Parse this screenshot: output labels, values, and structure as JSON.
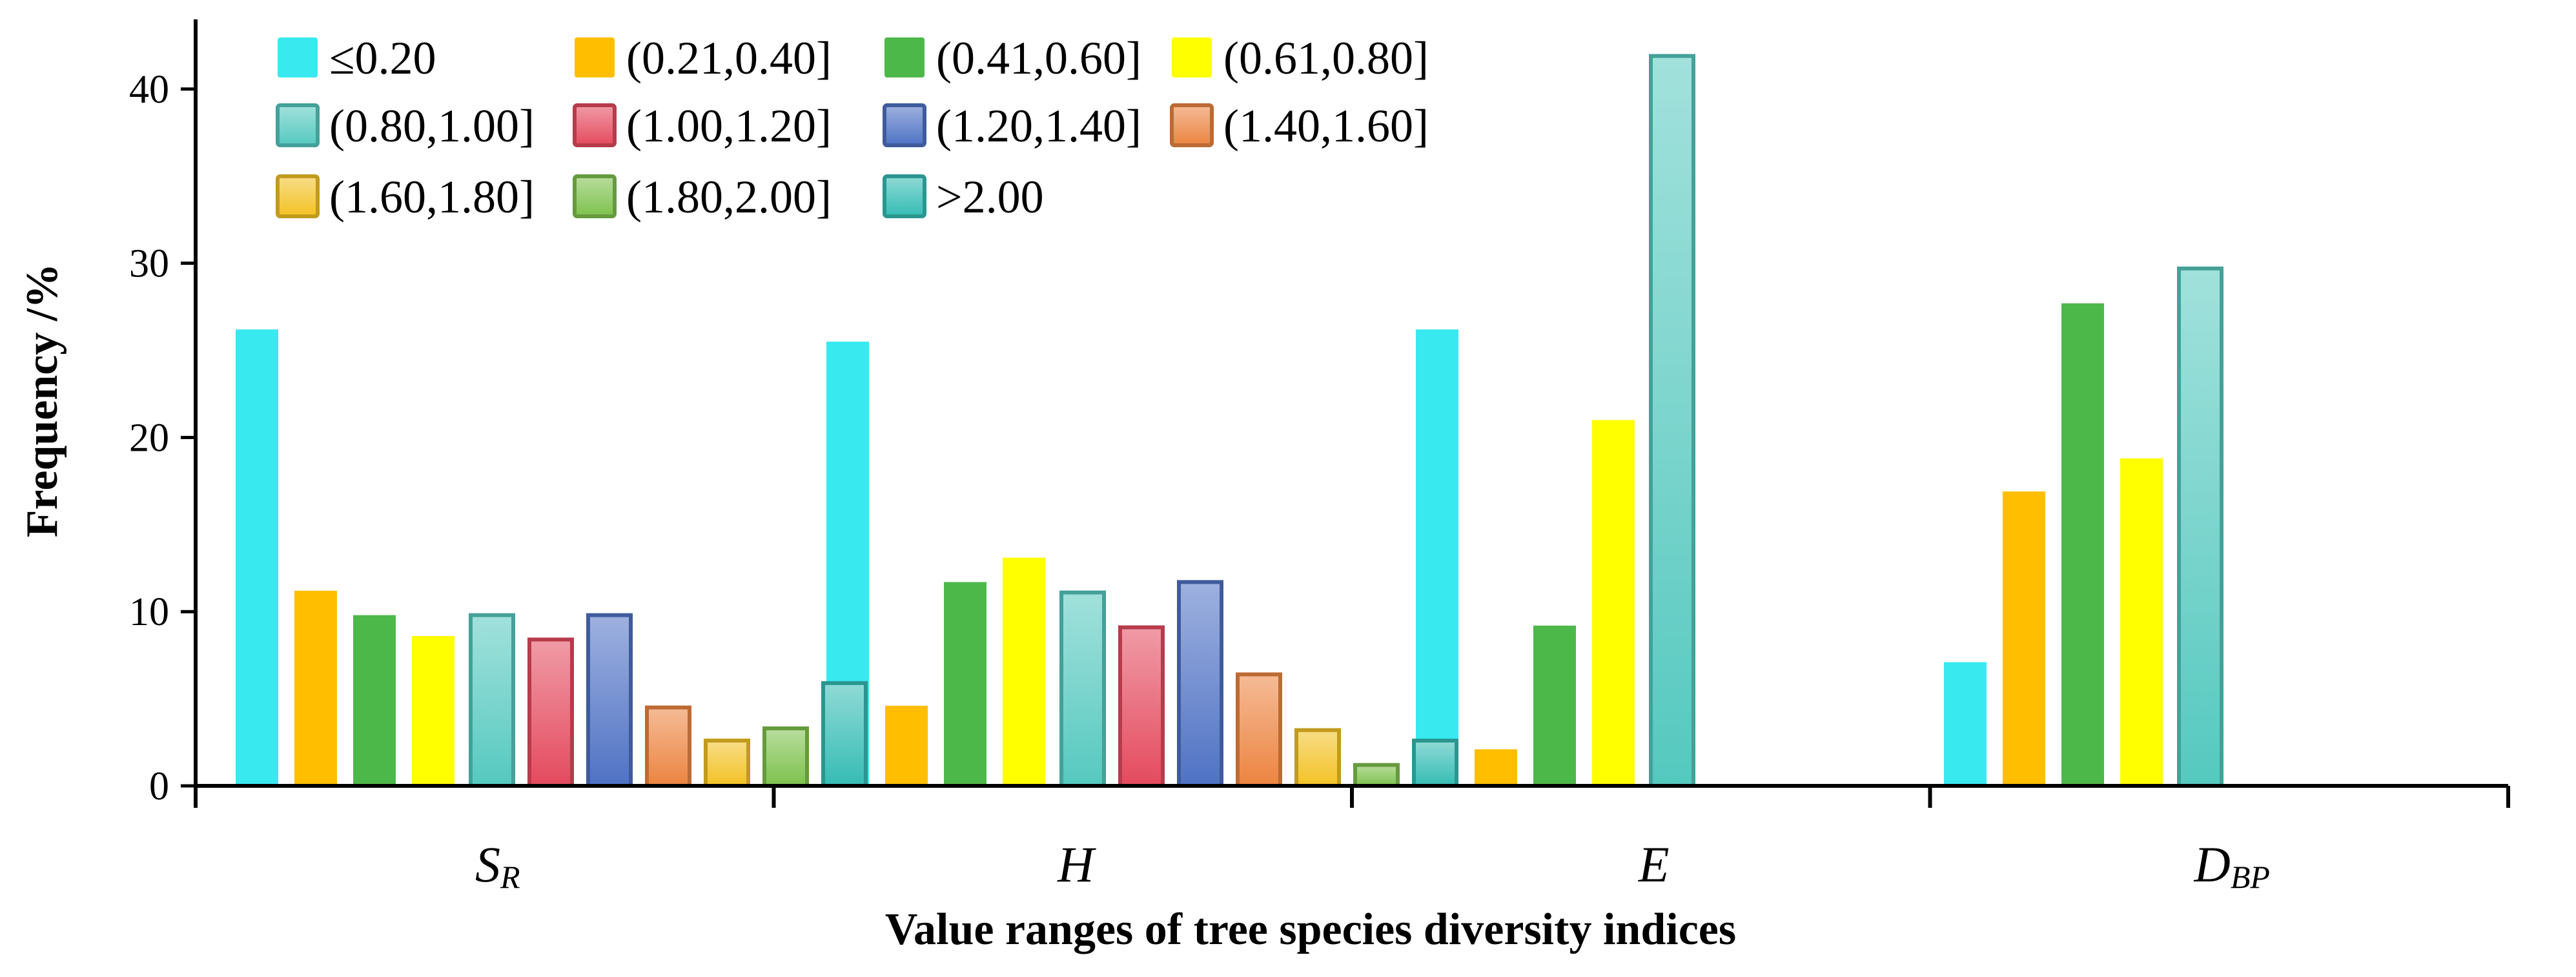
{
  "chart_data": {
    "type": "bar",
    "title": "",
    "xlabel": "Value ranges of tree species diversity indices",
    "ylabel": "Frequency /%",
    "ylim": [
      0,
      44
    ],
    "yticks": [
      "0",
      "10",
      "20",
      "30",
      "40"
    ],
    "categories": [
      {
        "main": "S",
        "sub": "R"
      },
      {
        "main": "H",
        "sub": ""
      },
      {
        "main": "E",
        "sub": ""
      },
      {
        "main": "D",
        "sub": "BP"
      }
    ],
    "series": [
      {
        "name": "≤0.20",
        "color": "#38e9f0",
        "values": [
          26.2,
          25.5,
          26.2,
          7.1
        ]
      },
      {
        "name": "(0.21,0.40]",
        "color": "#ffbe00",
        "values": [
          11.2,
          4.6,
          2.1,
          16.9
        ]
      },
      {
        "name": "(0.41,0.60]",
        "color": "#4db84a",
        "values": [
          9.8,
          11.7,
          9.2,
          27.7
        ]
      },
      {
        "name": "(0.61,0.80]",
        "color": "#ffff00",
        "values": [
          8.6,
          13.1,
          21.0,
          18.8
        ]
      },
      {
        "name": "(0.80,1.00]",
        "color": "#55c9bf",
        "values": [
          9.8,
          11.1,
          41.9,
          29.7
        ]
      },
      {
        "name": "(1.00,1.20]",
        "color": "#e44a5e",
        "values": [
          8.4,
          9.1,
          null,
          null
        ]
      },
      {
        "name": "(1.20,1.40]",
        "color": "#4f72c4",
        "values": [
          9.8,
          11.7,
          null,
          null
        ]
      },
      {
        "name": "(1.40,1.60]",
        "color": "#ec8440",
        "values": [
          4.5,
          6.4,
          null,
          null
        ]
      },
      {
        "name": "(1.60,1.80]",
        "color": "#f3c224",
        "values": [
          2.6,
          3.2,
          null,
          null
        ]
      },
      {
        "name": "(1.80,2.00]",
        "color": "#7ec24d",
        "values": [
          3.3,
          1.2,
          null,
          null
        ]
      },
      {
        "name": ">2.00",
        "color": "#35bcb4",
        "values": [
          5.9,
          2.6,
          null,
          null
        ]
      }
    ],
    "legend": "top-left",
    "grid": false
  }
}
